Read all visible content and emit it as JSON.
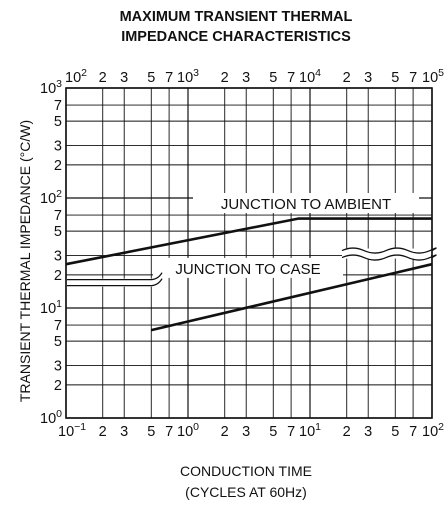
{
  "chart_data": {
    "type": "line",
    "title": [
      "MAXIMUM TRANSIENT THERMAL",
      "IMPEDANCE CHARACTERISTICS"
    ],
    "xlabel": [
      "CONDUCTION TIME",
      "(CYCLES AT 60Hz)"
    ],
    "ylabel": "TRANSIENT THERMAL IMPEDANCE  (°C/W)",
    "x_scale": "log",
    "y_scale": "log",
    "xlim": [
      0.1,
      100
    ],
    "ylim": [
      1,
      1000
    ],
    "secondary_xlim": [
      100,
      100000
    ],
    "grid": true,
    "x_ticks_bottom": [
      {
        "v": 0.1,
        "m": "10",
        "e": "−1"
      },
      {
        "v": 0.2,
        "m": "2"
      },
      {
        "v": 0.3,
        "m": "3"
      },
      {
        "v": 0.5,
        "m": "5"
      },
      {
        "v": 0.7,
        "m": "7"
      },
      {
        "v": 1,
        "m": "10",
        "e": "0"
      },
      {
        "v": 2,
        "m": "2"
      },
      {
        "v": 3,
        "m": "3"
      },
      {
        "v": 5,
        "m": "5"
      },
      {
        "v": 7,
        "m": "7"
      },
      {
        "v": 10,
        "m": "10",
        "e": "1"
      },
      {
        "v": 20,
        "m": "2"
      },
      {
        "v": 30,
        "m": "3"
      },
      {
        "v": 50,
        "m": "5"
      },
      {
        "v": 70,
        "m": "7"
      },
      {
        "v": 100,
        "m": "10",
        "e": "2"
      }
    ],
    "x_ticks_top": [
      {
        "v": 0.1,
        "m": "10",
        "e": "2"
      },
      {
        "v": 0.2,
        "m": "2"
      },
      {
        "v": 0.3,
        "m": "3"
      },
      {
        "v": 0.5,
        "m": "5"
      },
      {
        "v": 0.7,
        "m": "7"
      },
      {
        "v": 1,
        "m": "10",
        "e": "3"
      },
      {
        "v": 2,
        "m": "2"
      },
      {
        "v": 3,
        "m": "3"
      },
      {
        "v": 5,
        "m": "5"
      },
      {
        "v": 7,
        "m": "7"
      },
      {
        "v": 10,
        "m": "10",
        "e": "4"
      },
      {
        "v": 20,
        "m": "2"
      },
      {
        "v": 30,
        "m": "3"
      },
      {
        "v": 50,
        "m": "5"
      },
      {
        "v": 70,
        "m": "7"
      },
      {
        "v": 100,
        "m": "10",
        "e": "5"
      }
    ],
    "y_ticks": [
      {
        "v": 1,
        "m": "10",
        "e": "0"
      },
      {
        "v": 2,
        "m": "2"
      },
      {
        "v": 3,
        "m": "3"
      },
      {
        "v": 5,
        "m": "5"
      },
      {
        "v": 7,
        "m": "7"
      },
      {
        "v": 10,
        "m": "10",
        "e": "1"
      },
      {
        "v": 20,
        "m": "2"
      },
      {
        "v": 30,
        "m": "3"
      },
      {
        "v": 50,
        "m": "5"
      },
      {
        "v": 70,
        "m": "7"
      },
      {
        "v": 100,
        "m": "10",
        "e": "2"
      },
      {
        "v": 200,
        "m": "2"
      },
      {
        "v": 300,
        "m": "3"
      },
      {
        "v": 500,
        "m": "5"
      },
      {
        "v": 700,
        "m": "7"
      },
      {
        "v": 1000,
        "m": "10",
        "e": "3"
      }
    ],
    "series": [
      {
        "name": "JUNCTION TO AMBIENT",
        "axis": "top",
        "points": [
          [
            100,
            25
          ],
          [
            8000,
            65
          ],
          [
            100000,
            65
          ]
        ]
      },
      {
        "name": "JUNCTION TO CASE",
        "axis": "bottom",
        "points": [
          [
            0.5,
            6.3
          ],
          [
            100,
            25
          ]
        ]
      }
    ]
  }
}
